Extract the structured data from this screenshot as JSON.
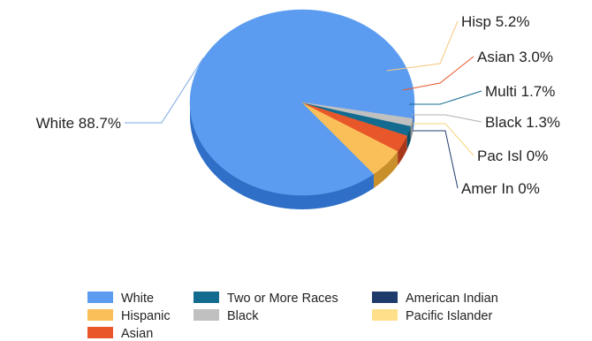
{
  "chart_data": {
    "type": "pie",
    "slices": [
      {
        "legend": "White",
        "callout": "White 88.7%",
        "value": 88.7,
        "color": "#5b9cf0",
        "side": "#2f6fc7"
      },
      {
        "legend": "Hispanic",
        "callout": "Hisp 5.2%",
        "value": 5.2,
        "color": "#fbbf5a",
        "side": "#c98f2a",
        "leader": "#f5c77e"
      },
      {
        "legend": "Asian",
        "callout": "Asian 3.0%",
        "value": 3.0,
        "color": "#e8572a",
        "side": "#a8381a",
        "leader": "#e8572a"
      },
      {
        "legend": "Two or More Races",
        "callout": "Multi 1.7%",
        "value": 1.7,
        "color": "#136c8f",
        "side": "#0c4d66",
        "leader": "#136c8f"
      },
      {
        "legend": "Black",
        "callout": "Black 1.3%",
        "value": 1.3,
        "color": "#c0c0c0",
        "side": "#8f8f8f",
        "leader": "#b0b0b0"
      },
      {
        "legend": "Pacific Islander",
        "callout": "Pac Isl 0%",
        "value": 0.0,
        "color": "#ffe08a",
        "side": "#d1b060",
        "leader": "#f3d47c"
      },
      {
        "legend": "American Indian",
        "callout": "Amer In 0%",
        "value": 0.0,
        "color": "#1f3b6b",
        "side": "#142748",
        "leader": "#1f3b6b"
      }
    ],
    "legend_order": [
      "White",
      "Two or More Races",
      "American Indian",
      "Hispanic",
      "Black",
      "Pacific Islander",
      "Asian"
    ],
    "legend_position": "bottom"
  }
}
